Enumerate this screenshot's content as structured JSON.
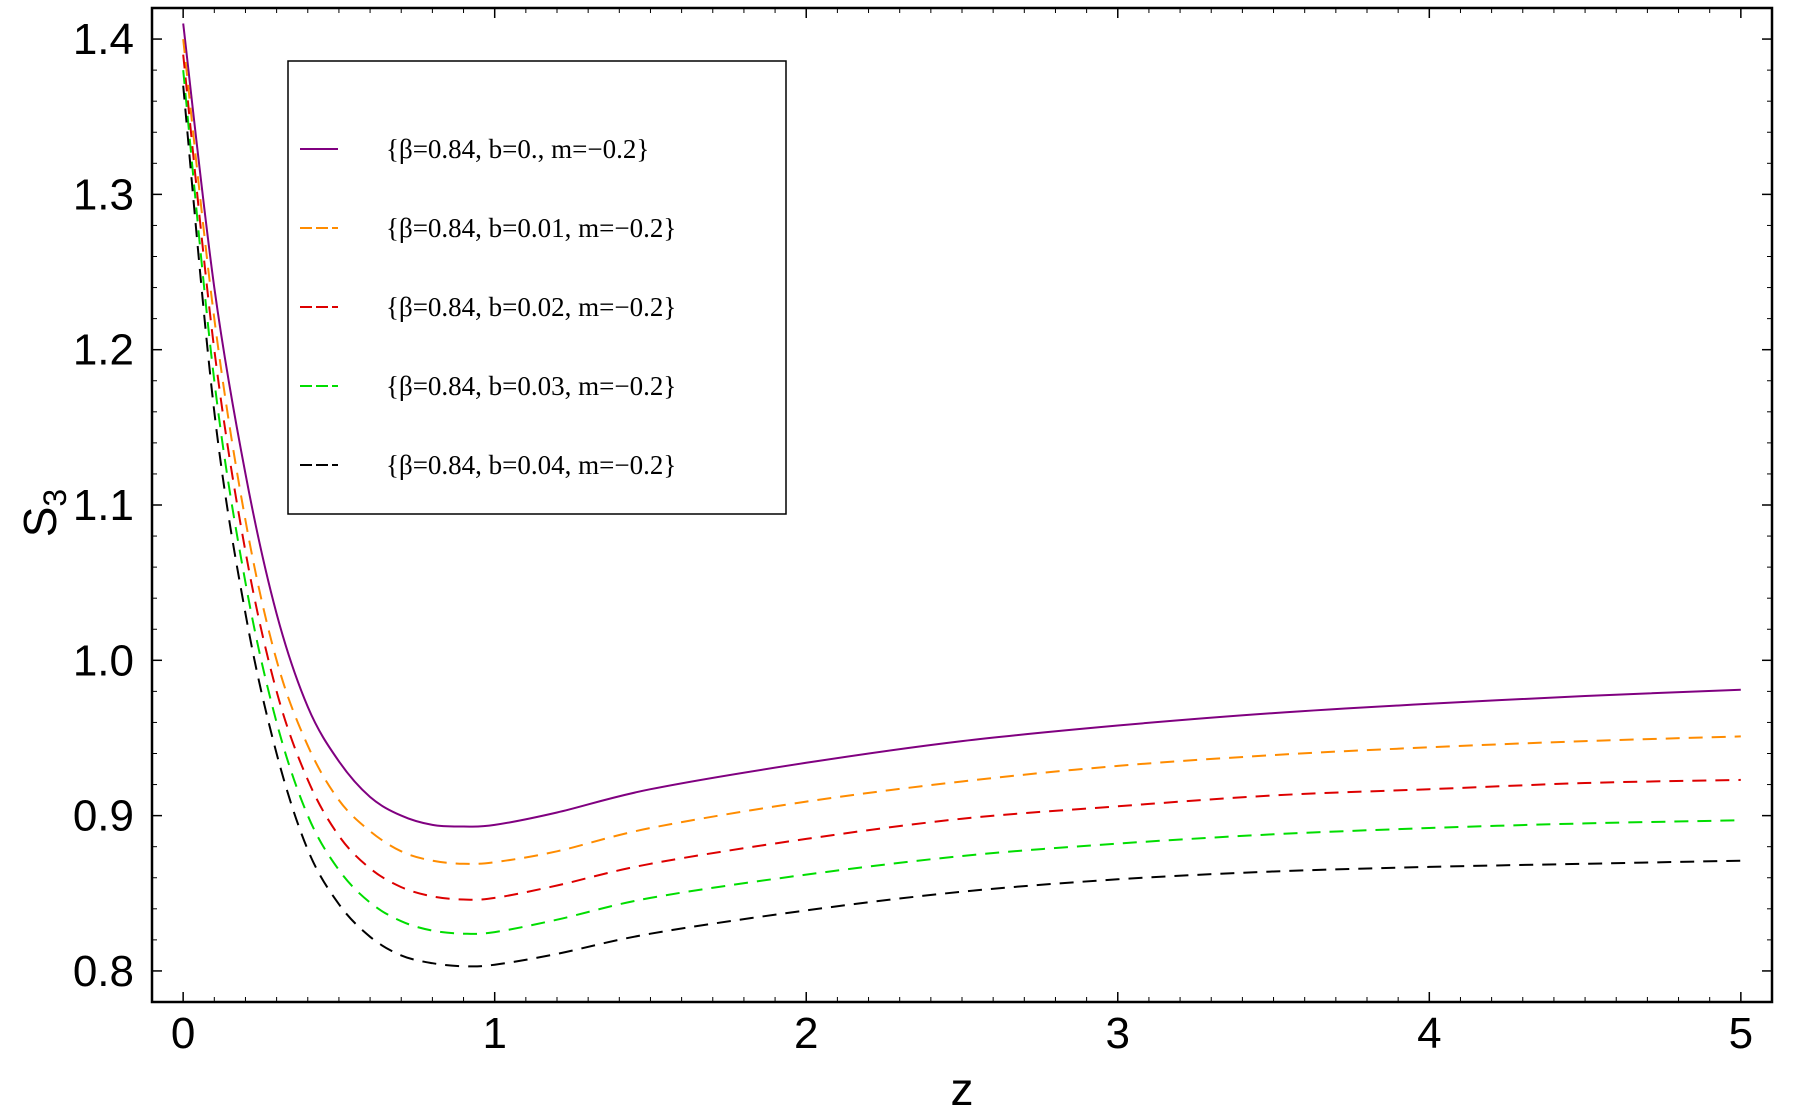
{
  "chart_data": {
    "type": "line",
    "xlabel": "z",
    "ylabel_main": "S",
    "ylabel_sub": "3",
    "xlim": [
      -0.1,
      5.1
    ],
    "ylim": [
      0.78,
      1.42
    ],
    "x_ticks": [
      0,
      1,
      2,
      3,
      4,
      5
    ],
    "x_tick_labels": [
      "0",
      "1",
      "2",
      "3",
      "4",
      "5"
    ],
    "y_ticks": [
      0.8,
      0.9,
      1.0,
      1.1,
      1.2,
      1.3,
      1.4
    ],
    "y_tick_labels": [
      "0.8",
      "0.9",
      "1.0",
      "1.1",
      "1.2",
      "1.3",
      "1.4"
    ],
    "grid": false,
    "legend_position": "top-left",
    "x": [
      0,
      0.1,
      0.2,
      0.3,
      0.4,
      0.5,
      0.6,
      0.7,
      0.8,
      0.9,
      1.0,
      1.2,
      1.5,
      2.0,
      2.5,
      3.0,
      3.5,
      4.0,
      4.5,
      5.0
    ],
    "series": [
      {
        "name": "{β=0.84, b=0., m=−0.2}",
        "color": "#800080",
        "dashed": false,
        "values": [
          1.41,
          1.24,
          1.12,
          1.03,
          0.97,
          0.935,
          0.912,
          0.9,
          0.894,
          0.893,
          0.894,
          0.902,
          0.917,
          0.934,
          0.948,
          0.958,
          0.966,
          0.972,
          0.977,
          0.981
        ]
      },
      {
        "name": "{β=0.84, b=0.01, m=−0.2}",
        "color": "#ff8c00",
        "dashed": true,
        "values": [
          1.4,
          1.22,
          1.09,
          1.0,
          0.945,
          0.91,
          0.89,
          0.877,
          0.871,
          0.869,
          0.87,
          0.877,
          0.892,
          0.909,
          0.922,
          0.932,
          0.939,
          0.944,
          0.948,
          0.951
        ]
      },
      {
        "name": "{β=0.84, b=0.02, m=−0.2}",
        "color": "#dd0000",
        "dashed": true,
        "values": [
          1.39,
          1.2,
          1.07,
          0.98,
          0.923,
          0.887,
          0.866,
          0.854,
          0.848,
          0.846,
          0.847,
          0.855,
          0.869,
          0.885,
          0.898,
          0.906,
          0.913,
          0.917,
          0.921,
          0.923
        ]
      },
      {
        "name": "{β=0.84, b=0.03, m=−0.2}",
        "color": "#00dd00",
        "dashed": true,
        "values": [
          1.38,
          1.18,
          1.05,
          0.96,
          0.9,
          0.865,
          0.844,
          0.832,
          0.826,
          0.824,
          0.825,
          0.833,
          0.847,
          0.862,
          0.874,
          0.882,
          0.888,
          0.892,
          0.895,
          0.897
        ]
      },
      {
        "name": "{β=0.84, b=0.04, m=−0.2}",
        "color": "#000000",
        "dashed": true,
        "values": [
          1.37,
          1.16,
          1.03,
          0.94,
          0.878,
          0.843,
          0.822,
          0.81,
          0.805,
          0.803,
          0.804,
          0.811,
          0.824,
          0.839,
          0.851,
          0.859,
          0.864,
          0.867,
          0.869,
          0.871
        ]
      }
    ]
  }
}
